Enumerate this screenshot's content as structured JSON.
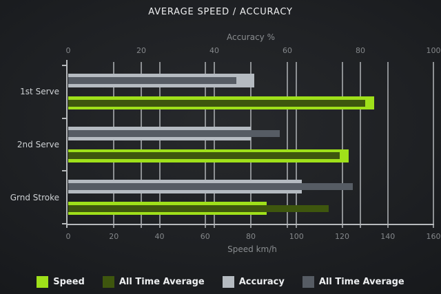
{
  "title": "AVERAGE SPEED / ACCURACY",
  "colors": {
    "speed": "#9fe01a",
    "speed_all_time_avg": "#3e560e",
    "accuracy": "#b5bbc1",
    "accuracy_all_time_avg": "#565c64",
    "grid": "#8e9194",
    "axis": "#b7babd"
  },
  "chart_data": {
    "type": "bar",
    "orientation": "horizontal",
    "title": "AVERAGE SPEED / ACCURACY",
    "categories": [
      "1st Serve",
      "2nd Serve",
      "Grnd Stroke"
    ],
    "axes": {
      "top": {
        "label": "Accuracy %",
        "min": 0,
        "max": 100,
        "ticks": [
          0,
          20,
          40,
          60,
          80,
          100
        ]
      },
      "bottom": {
        "label": "Speed km/h",
        "min": 0,
        "max": 160,
        "ticks": [
          0,
          20,
          40,
          60,
          80,
          100,
          120,
          140,
          160
        ]
      }
    },
    "grid": "vertical gridlines every 20 units on both top and bottom scales",
    "legend_position": "bottom",
    "series": [
      {
        "name": "Speed",
        "axis": "bottom",
        "layer": "outer",
        "row": "speed",
        "color": "#9fe01a",
        "values": [
          134,
          123,
          87
        ]
      },
      {
        "name": "All Time Average",
        "axis": "bottom",
        "layer": "inner",
        "row": "speed",
        "color": "#3e560e",
        "values": [
          130,
          119,
          114
        ]
      },
      {
        "name": "Accuracy",
        "axis": "top",
        "layer": "outer",
        "row": "accuracy",
        "color": "#b5bbc1",
        "values": [
          51,
          50,
          64
        ]
      },
      {
        "name": "All Time Average",
        "axis": "top",
        "layer": "inner",
        "row": "accuracy",
        "color": "#565c64",
        "values": [
          46,
          58,
          78
        ]
      }
    ]
  },
  "legend": {
    "items": [
      {
        "label": "Speed",
        "color": "#9fe01a"
      },
      {
        "label": "All Time Average",
        "color": "#3e560e"
      },
      {
        "label": "Accuracy",
        "color": "#b5bbc1"
      },
      {
        "label": "All Time Average",
        "color": "#565c64"
      }
    ]
  }
}
